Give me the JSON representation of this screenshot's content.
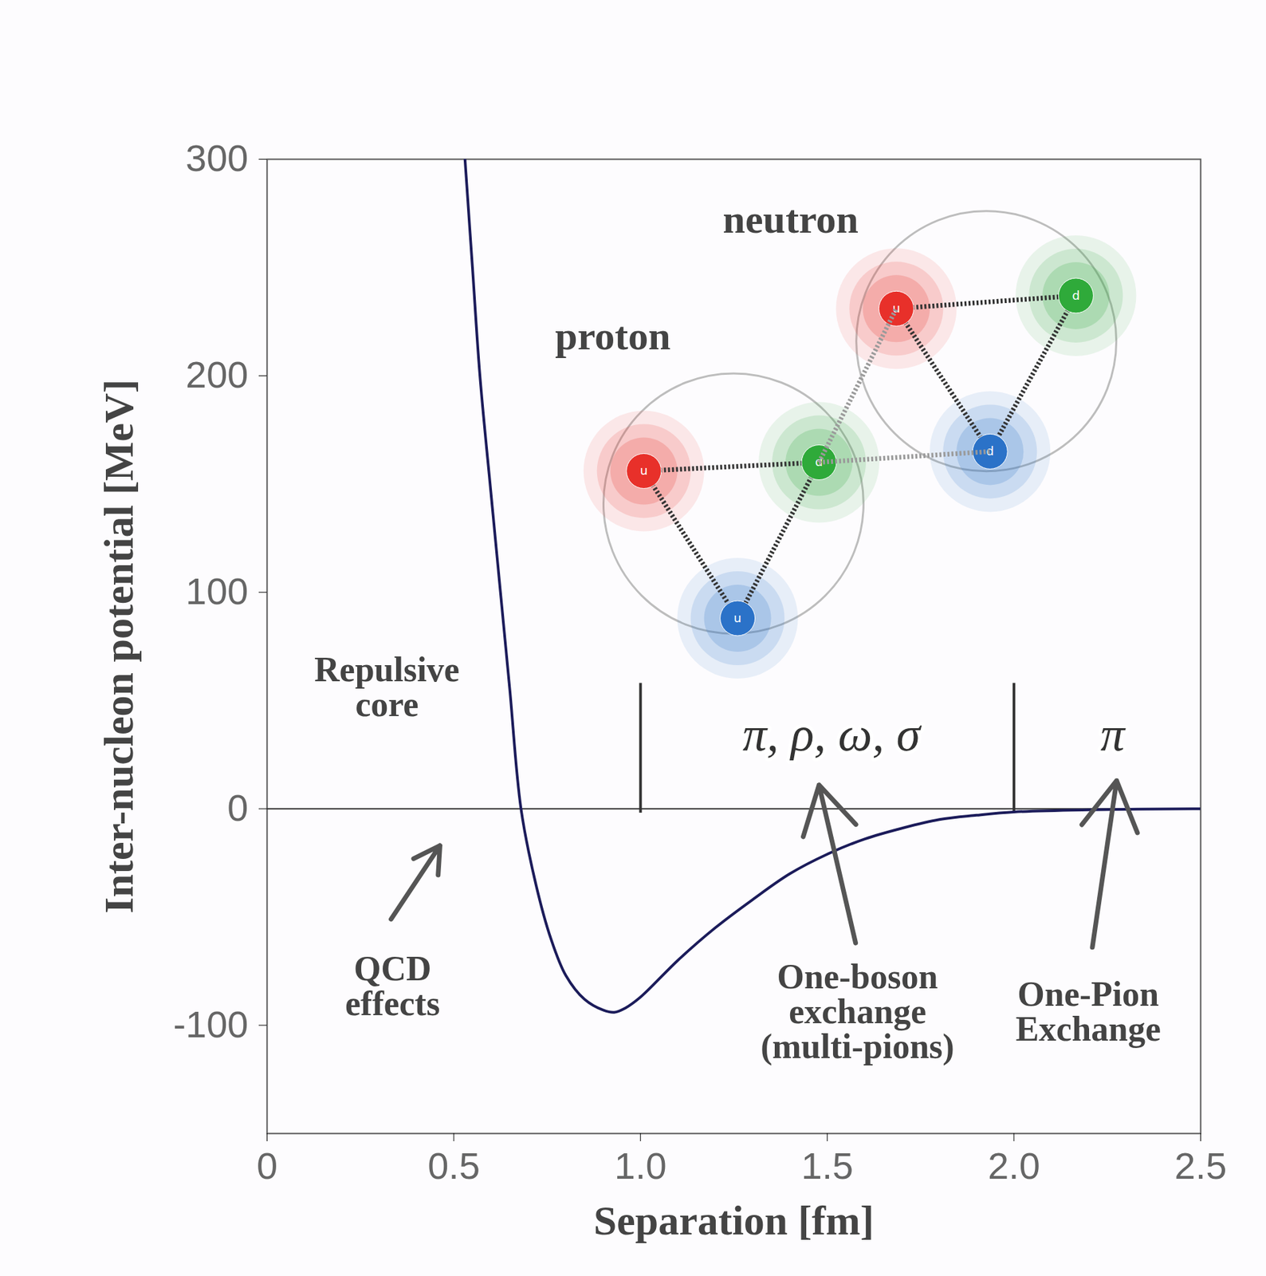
{
  "chart_data": {
    "type": "line",
    "x_label": "Separation [fm]",
    "y_label": "Inter-nucleon potential [MeV]",
    "x": [
      0.53,
      0.55,
      0.57,
      0.6,
      0.625,
      0.65,
      0.68,
      0.72,
      0.76,
      0.8,
      0.85,
      0.9,
      0.93,
      0.96,
      1.0,
      1.1,
      1.2,
      1.3,
      1.4,
      1.5,
      1.6,
      1.7,
      1.8,
      1.9,
      2.0,
      2.2,
      2.5
    ],
    "values": [
      300,
      250,
      200,
      145,
      100,
      55,
      0,
      -35,
      -60,
      -77,
      -88,
      -93,
      -94,
      -92,
      -87,
      -70,
      -55,
      -42,
      -30,
      -21,
      -14,
      -9,
      -5,
      -3,
      -1.5,
      -0.5,
      0
    ],
    "color": "#1b1b5a",
    "xlim": [
      0,
      2.5
    ],
    "ylim": [
      -150,
      300
    ],
    "xticks": [
      0,
      0.5,
      {
        "value": 1,
        "label": "1.0"
      },
      1.5,
      {
        "value": 2,
        "label": "2.0"
      },
      2.5
    ],
    "yticks": [
      -100,
      0,
      100,
      200,
      300
    ],
    "baseline": 0,
    "dividers": {
      "x": [
        1,
        2
      ],
      "y": [
        -2,
        58
      ]
    },
    "annotations": {
      "repulsive_core": "Repulsive core",
      "qcd": "QCD effects",
      "mesons_mid": "π, ρ, ω, σ",
      "meson_far": "π",
      "obe": "One-boson exchange (multi-pions)",
      "ope": "One-Pion Exchange"
    },
    "nucleons": [
      {
        "label": "proton",
        "quarks": [
          "u",
          "d",
          "u"
        ]
      },
      {
        "label": "neutron",
        "quarks": [
          "u",
          "d",
          "d"
        ]
      }
    ]
  }
}
